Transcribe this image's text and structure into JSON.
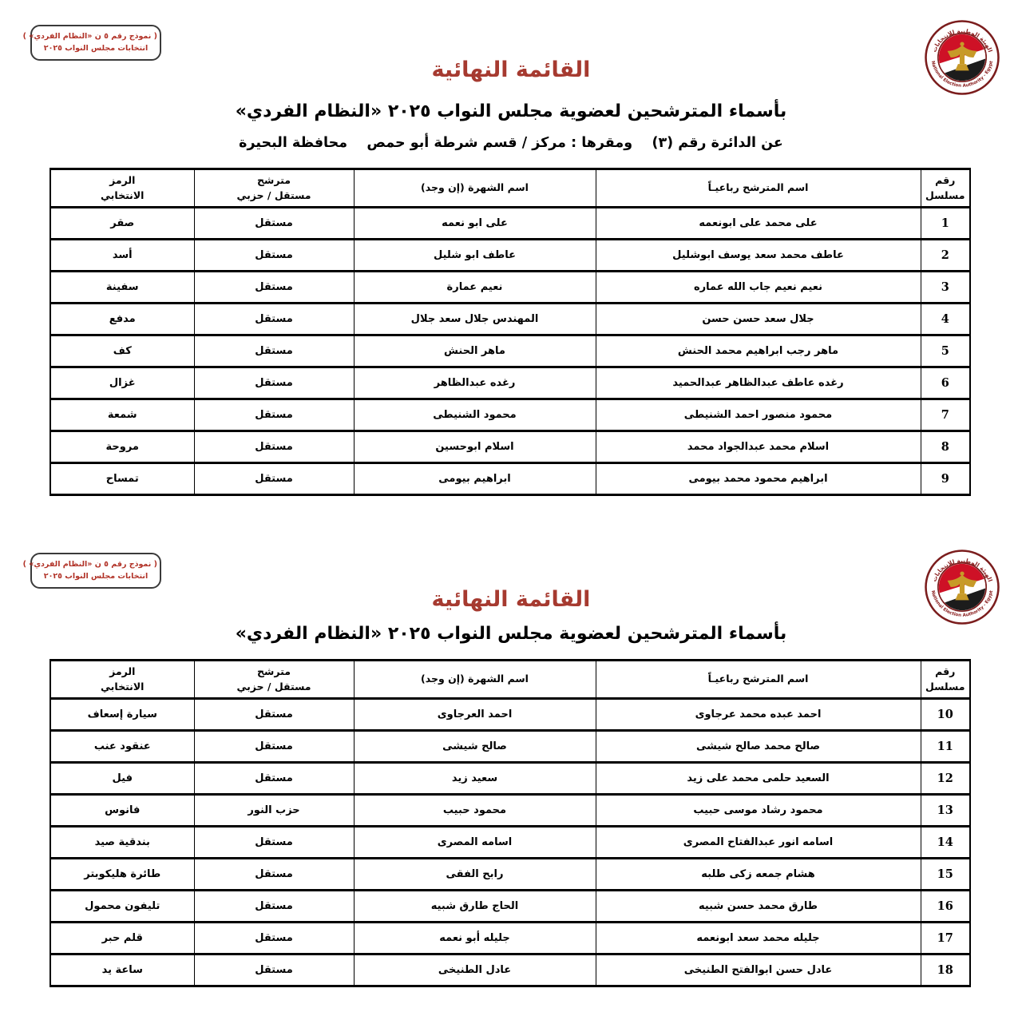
{
  "colors": {
    "title_red": "#a63a30",
    "stamp_red": "#b13227",
    "logo_ring_red": "#7b1d1d",
    "eagle_gold": "#c79a28",
    "flag_red": "#ce1126",
    "border_black": "#000000"
  },
  "logo": {
    "arabic": "الهيئة الوطنية للانتخابات",
    "english": "National Election Authority - Egypt"
  },
  "table": {
    "columns": {
      "serial": "رقم\nمسلسل",
      "full_name": "اسم المترشح رباعيـاً",
      "known_as": "اسم الشهرة (إن وجد)",
      "affiliation": "مترشح\nمستقل / حزبي",
      "symbol": "الرمز\nالانتخابي"
    },
    "row_keys": [
      "serial",
      "full_name",
      "known_as",
      "affiliation",
      "symbol"
    ]
  },
  "section1": {
    "stamp": {
      "line1": "( نموذج رقم ٥ ن «النظام الفردي» )",
      "line2": "انتخابات مجلس النواب ٢٠٢٥"
    },
    "title": "القائمة النهائية",
    "subtitle": "بأسماء المترشحين لعضوية مجلس النواب ٢٠٢٥ «النظام الفردي»",
    "district_line": "عن الدائرة رقم (٣)    ومقرها : مركز / قسم شرطة أبو حمص    محافظة البحيرة",
    "rows": [
      {
        "serial": "1",
        "full_name": "على محمد على ابونعمه",
        "known_as": "على ابو نعمه",
        "affiliation": "مستقل",
        "symbol": "صقر"
      },
      {
        "serial": "2",
        "full_name": "عاطف محمد سعد يوسف ابوشليل",
        "known_as": "عاطف ابو شليل",
        "affiliation": "مستقل",
        "symbol": "أسد"
      },
      {
        "serial": "3",
        "full_name": "نعيم نعيم جاب الله عماره",
        "known_as": "نعيم عمارة",
        "affiliation": "مستقل",
        "symbol": "سفينة"
      },
      {
        "serial": "4",
        "full_name": "جلال سعد حسن حسن",
        "known_as": "المهندس جلال سعد جلال",
        "affiliation": "مستقل",
        "symbol": "مدفع"
      },
      {
        "serial": "5",
        "full_name": "ماهر رجب ابراهيم محمد الحنش",
        "known_as": "ماهر الحنش",
        "affiliation": "مستقل",
        "symbol": "كف"
      },
      {
        "serial": "6",
        "full_name": "رغده عاطف عبدالظاهر عبدالحميد",
        "known_as": "رغده عبدالظاهر",
        "affiliation": "مستقل",
        "symbol": "غزال"
      },
      {
        "serial": "7",
        "full_name": "محمود منصور احمد الشنيطى",
        "known_as": "محمود الشنيطى",
        "affiliation": "مستقل",
        "symbol": "شمعة"
      },
      {
        "serial": "8",
        "full_name": "اسلام محمد عبدالجواد محمد",
        "known_as": "اسلام ابوحسين",
        "affiliation": "مستقل",
        "symbol": "مروحة"
      },
      {
        "serial": "9",
        "full_name": "ابراهيم محمود محمد بيومى",
        "known_as": "ابراهيم بيومى",
        "affiliation": "مستقل",
        "symbol": "تمساح"
      }
    ]
  },
  "section2": {
    "stamp": {
      "line1": "( نموذج رقم ٥ ن «النظام الفردي» )",
      "line2": "انتخابات مجلس النواب ٢٠٢٥"
    },
    "title": "القائمة النهائية",
    "subtitle": "بأسماء المترشحين لعضوية مجلس النواب ٢٠٢٥ «النظام الفردي»",
    "rows": [
      {
        "serial": "10",
        "full_name": "احمد عبده محمد عرجاوى",
        "known_as": "احمد العرجاوى",
        "affiliation": "مستقل",
        "symbol": "سيارة إسعاف"
      },
      {
        "serial": "11",
        "full_name": "صالح محمد صالح شيشى",
        "known_as": "صالح شيشى",
        "affiliation": "مستقل",
        "symbol": "عنقود عنب"
      },
      {
        "serial": "12",
        "full_name": "السعيد حلمى محمد على زيد",
        "known_as": "سعيد زيد",
        "affiliation": "مستقل",
        "symbol": "فيل"
      },
      {
        "serial": "13",
        "full_name": "محمود رشاد موسى حبيب",
        "known_as": "محمود حبيب",
        "affiliation": "حزب النور",
        "symbol": "فانوس"
      },
      {
        "serial": "14",
        "full_name": "اسامه انور عبدالفتاح المصرى",
        "known_as": "اسامه المصرى",
        "affiliation": "مستقل",
        "symbol": "بندقية صيد"
      },
      {
        "serial": "15",
        "full_name": "هشام جمعه زكى طلبه",
        "known_as": "رابح الفقى",
        "affiliation": "مستقل",
        "symbol": "طائرة هليكوبتر"
      },
      {
        "serial": "16",
        "full_name": "طارق محمد حسن شبيه",
        "known_as": "الحاج طارق شبيه",
        "affiliation": "مستقل",
        "symbol": "تليفون محمول"
      },
      {
        "serial": "17",
        "full_name": "جليله محمد سعد ابونعمه",
        "known_as": "جليله أبو نعمه",
        "affiliation": "مستقل",
        "symbol": "قلم حبر"
      },
      {
        "serial": "18",
        "full_name": "عادل حسن ابوالفتح الطنيخى",
        "known_as": "عادل الطنيخى",
        "affiliation": "مستقل",
        "symbol": "ساعة يد"
      }
    ]
  }
}
